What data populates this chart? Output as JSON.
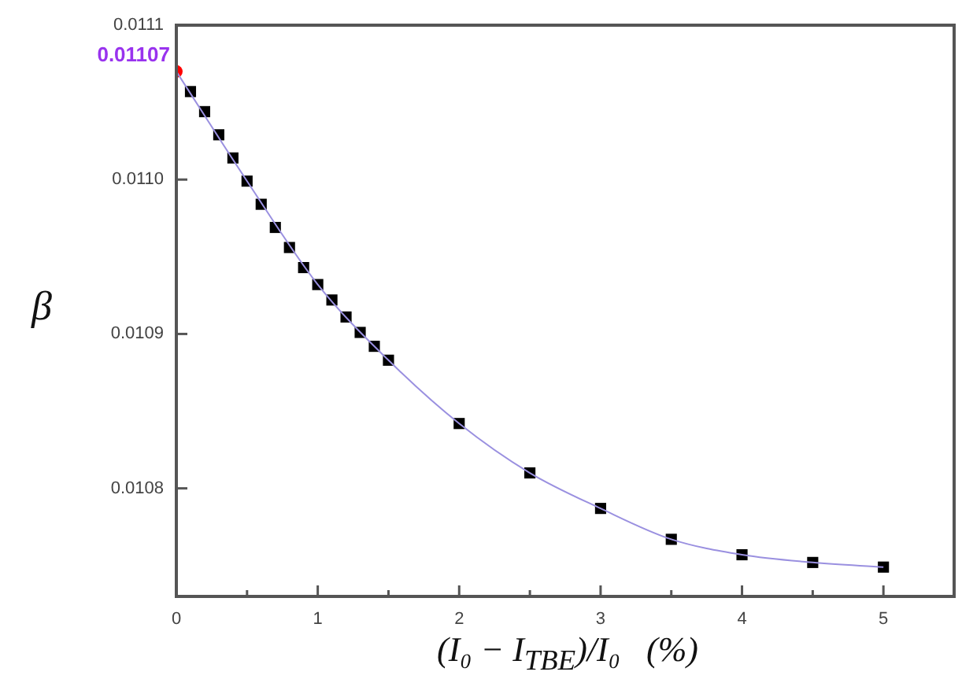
{
  "chart_data": {
    "type": "scatter",
    "xlabel": "(I₀ − I$_{TBE}$)/I₀   (%)",
    "ylabel": "β",
    "xlim": [
      0,
      5.5
    ],
    "xticks": [
      0,
      {
        "value": 0.5,
        "label": null
      },
      1,
      {
        "value": 1.5,
        "label": null
      },
      2,
      {
        "value": 2.5,
        "label": null
      },
      3,
      {
        "value": 3.5,
        "label": null
      },
      4,
      {
        "value": 4.5,
        "label": null
      },
      5
    ],
    "ylim": [
      0.01073,
      0.0111
    ],
    "yticks": [
      0.0108,
      0.0109,
      {
        "value": 0.011,
        "label": "0.0110"
      },
      0.0111
    ],
    "grid": false,
    "legend": false,
    "annotations": [
      {
        "text": "0.01107",
        "x": 0,
        "y": 0.01107
      }
    ],
    "series": [
      {
        "type": "line",
        "color": "#9a90e0",
        "marker": "none",
        "x": [
          0,
          0.5,
          1,
          1.5,
          2,
          2.5,
          3,
          3.5,
          4,
          4.5,
          5
        ],
        "values": [
          0.01107,
          0.010999,
          0.010932,
          0.010883,
          0.010842,
          0.01081,
          0.010787,
          0.010767,
          0.010757,
          0.010752,
          0.010749
        ]
      },
      {
        "color": "#000000",
        "marker": "square",
        "x": [
          0.1,
          0.2,
          0.3,
          0.4,
          0.5,
          0.6,
          0.7,
          0.8,
          0.9,
          1.0,
          1.1,
          1.2,
          1.3,
          1.4,
          1.5,
          2,
          2.5,
          3,
          3.5,
          4,
          4.5,
          5
        ],
        "values": [
          0.011057,
          0.011044,
          0.011029,
          0.011014,
          0.010999,
          0.010984,
          0.010969,
          0.010956,
          0.010943,
          0.010932,
          0.010922,
          0.010911,
          0.010901,
          0.010892,
          0.010883,
          0.010842,
          0.01081,
          0.010787,
          0.010767,
          0.010757,
          0.010752,
          0.010749
        ]
      },
      {
        "color": "#ff0000",
        "marker": "circle",
        "x": [
          0
        ],
        "values": [
          0.01107
        ]
      }
    ]
  }
}
